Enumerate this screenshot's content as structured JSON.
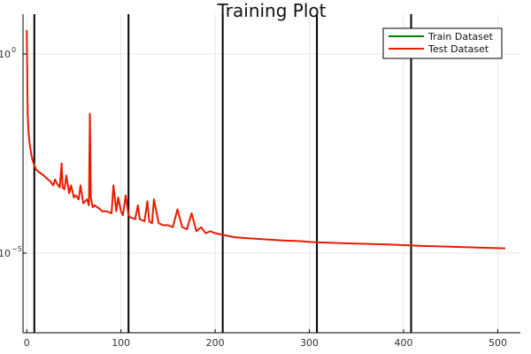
{
  "chart_data": {
    "type": "line",
    "title": "Training Plot",
    "xlabel": "",
    "ylabel": "",
    "y_scale": "log10",
    "xlim": [
      -4,
      524
    ],
    "ylim_log10": [
      -7.0,
      1.0
    ],
    "x_ticks": [
      0,
      100,
      200,
      300,
      400,
      500
    ],
    "x_tick_labels": [
      "0",
      "100",
      "200",
      "300",
      "400",
      "500"
    ],
    "y_ticks_log10": [
      0,
      -5
    ],
    "y_tick_labels": [
      "10",
      "10"
    ],
    "y_tick_exponents": [
      "0",
      "−5"
    ],
    "grid": true,
    "legend_position": "top-right",
    "vertical_lines": [
      8,
      108,
      208,
      308,
      408
    ],
    "vertical_line_color": "#000000",
    "series": [
      {
        "name": "Train Dataset",
        "color": "#008000",
        "x": [],
        "log10_y": []
      },
      {
        "name": "Test Dataset",
        "color": "#e81b00",
        "x": [
          0,
          1,
          2,
          3,
          4,
          5,
          6,
          8,
          10,
          12,
          15,
          18,
          20,
          25,
          28,
          30,
          32,
          35,
          37,
          38,
          40,
          42,
          45,
          47,
          50,
          52,
          55,
          57,
          60,
          62,
          64,
          66,
          67,
          68,
          70,
          72,
          75,
          78,
          80,
          85,
          90,
          92,
          95,
          97,
          100,
          102,
          105,
          108,
          110,
          115,
          118,
          120,
          125,
          128,
          130,
          133,
          135,
          140,
          145,
          150,
          155,
          160,
          165,
          170,
          175,
          180,
          185,
          190,
          195,
          200,
          210,
          220,
          230,
          250,
          270,
          290,
          300,
          310,
          320,
          350,
          380,
          400,
          420,
          450,
          480,
          508
        ],
        "log10_y": [
          0.6,
          -1.5,
          -2.0,
          -2.25,
          -2.4,
          -2.55,
          -2.65,
          -2.8,
          -2.9,
          -2.95,
          -3.0,
          -3.05,
          -3.1,
          -3.2,
          -3.3,
          -3.15,
          -3.25,
          -3.35,
          -2.75,
          -3.35,
          -3.4,
          -3.05,
          -3.5,
          -3.3,
          -3.6,
          -3.55,
          -3.65,
          -3.3,
          -3.75,
          -3.7,
          -3.65,
          -3.8,
          -1.5,
          -3.6,
          -3.85,
          -3.8,
          -3.85,
          -3.9,
          -3.95,
          -3.95,
          -4.0,
          -3.3,
          -3.95,
          -3.6,
          -3.95,
          -4.05,
          -3.55,
          -4.05,
          -4.1,
          -4.15,
          -3.8,
          -4.15,
          -4.2,
          -3.7,
          -4.2,
          -4.25,
          -3.65,
          -4.25,
          -4.3,
          -4.3,
          -4.35,
          -3.9,
          -4.35,
          -4.4,
          -4.0,
          -4.45,
          -4.35,
          -4.5,
          -4.45,
          -4.5,
          -4.55,
          -4.6,
          -4.62,
          -4.65,
          -4.68,
          -4.7,
          -4.72,
          -4.73,
          -4.74,
          -4.76,
          -4.78,
          -4.8,
          -4.82,
          -4.84,
          -4.86,
          -4.88
        ]
      }
    ]
  }
}
